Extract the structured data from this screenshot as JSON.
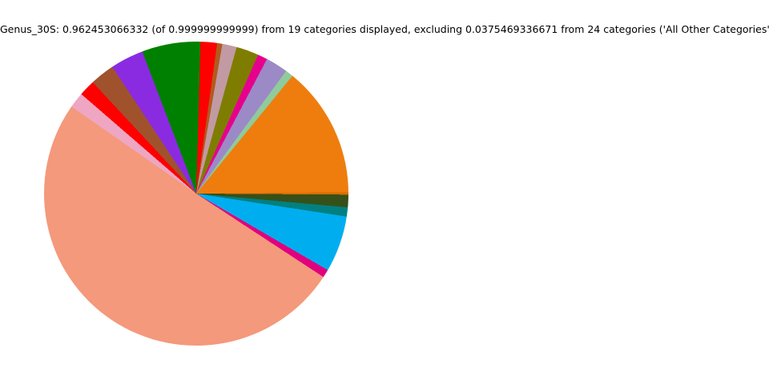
{
  "header": {
    "title": "Genus_30S: 0.962453066332 (of 0.999999999999) from 19 categories displayed, excluding 0.0375469336671 from 24 categories ('All Other Categories')"
  },
  "chart_data": {
    "type": "pie",
    "title": "Genus_30S: 0.962453066332 (of 0.999999999999) from 19 categories displayed, excluding 0.0375469336671 from 24 categories ('All Other Categories')",
    "dataset_name": "Genus_30S",
    "displayed_fraction": "0.962453066332",
    "total_fraction": "0.999999999999",
    "categories_displayed": 19,
    "excluded_fraction": "0.0375469336671",
    "categories_total": 24,
    "excluded_group_label": "All Other Categories",
    "legend": "none",
    "slice_labels_visible": false,
    "start_angle_deg_from_top": 1.6,
    "direction": "clockwise",
    "slices": [
      {
        "color": "#ff0000",
        "degrees": 6.3,
        "share_of_pie": 0.0175
      },
      {
        "color": "#b25a1e",
        "degrees": 2.0,
        "share_of_pie": 0.0056
      },
      {
        "color": "#c19aa3",
        "degrees": 5.5,
        "share_of_pie": 0.0153
      },
      {
        "color": "#7f7d00",
        "degrees": 8.6,
        "share_of_pie": 0.0239
      },
      {
        "color": "#e6008c",
        "degrees": 3.7,
        "share_of_pie": 0.0103
      },
      {
        "color": "#9c8ac6",
        "degrees": 8.5,
        "share_of_pie": 0.0236
      },
      {
        "color": "#8fcb9b",
        "degrees": 3.0,
        "share_of_pie": 0.0083
      },
      {
        "color": "#ee7d0e",
        "degrees": 50.3,
        "share_of_pie": 0.1397
      },
      {
        "color": "#d86d00",
        "degrees": 0.9,
        "share_of_pie": 0.0025
      },
      {
        "color": "#36501a",
        "degrees": 4.8,
        "share_of_pie": 0.0133
      },
      {
        "color": "#008080",
        "degrees": 3.5,
        "share_of_pie": 0.0097
      },
      {
        "color": "#00aeef",
        "degrees": 21.5,
        "share_of_pie": 0.0597
      },
      {
        "color": "#e0007f",
        "degrees": 3.1,
        "share_of_pie": 0.0086
      },
      {
        "color": "#f4997b",
        "degrees": 181.6,
        "share_of_pie": 0.5044
      },
      {
        "color": "#efa6c3",
        "degrees": 6.0,
        "share_of_pie": 0.0167
      },
      {
        "color": "#ff0000",
        "degrees": 6.2,
        "share_of_pie": 0.0172
      },
      {
        "color": "#a0522d",
        "degrees": 9.4,
        "share_of_pie": 0.0261
      },
      {
        "color": "#8a2be2",
        "degrees": 12.7,
        "share_of_pie": 0.0353
      },
      {
        "color": "#008000",
        "degrees": 22.4,
        "share_of_pie": 0.0622
      }
    ]
  }
}
